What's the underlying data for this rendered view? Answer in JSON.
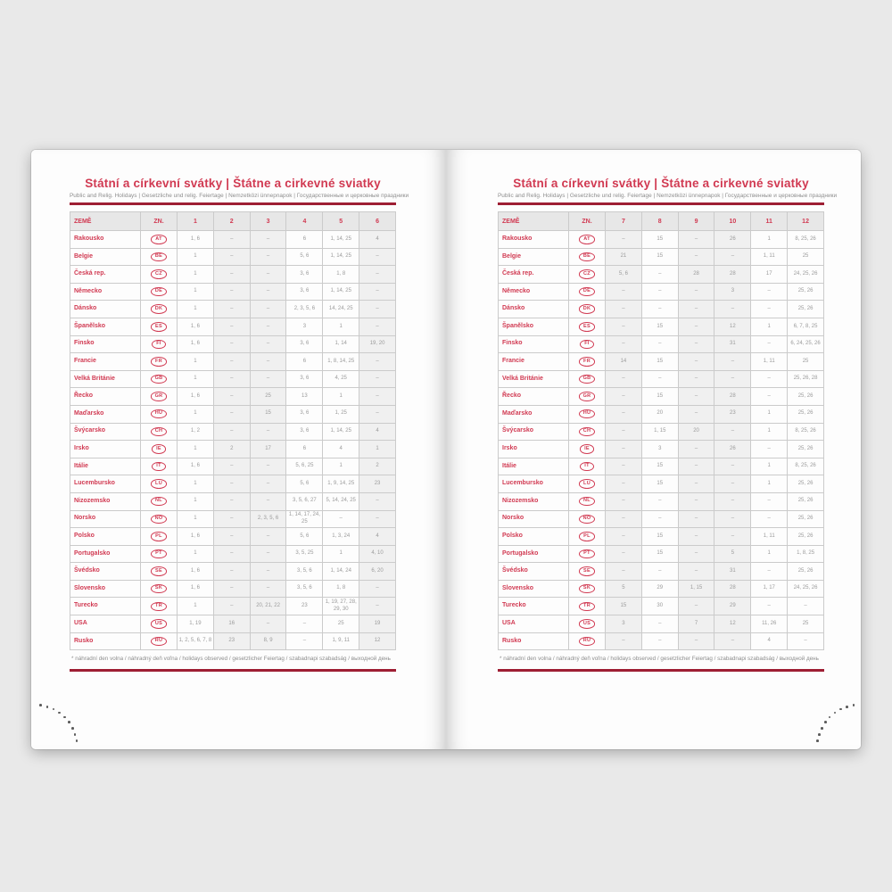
{
  "colors": {
    "accent": "#d13a52",
    "rule": "#9e1e33",
    "numbers": "#9b9b9b"
  },
  "header": {
    "title": "Státní a církevní svátky | Štátne a cirkevné sviatky",
    "subtitle": "Public and Relig. Holidays | Gesetzliche und relig. Feiertage | Nemzetközi ünnepnapok | Государственные и церковные праздники"
  },
  "footnote": "* náhradní den volna / náhradný deň voľna / holidays observed / gesetzlicher Feiertag / szabadnapi szabadság / выходной день",
  "pages": [
    {
      "columns": [
        "ZEMĚ",
        "ZN.",
        "1",
        "2",
        "3",
        "4",
        "5",
        "6"
      ],
      "rows": [
        {
          "country": "Rakousko",
          "code": "AT",
          "values": [
            "1, 6",
            "–",
            "–",
            "6",
            "1, 14, 25",
            "4"
          ]
        },
        {
          "country": "Belgie",
          "code": "BE",
          "values": [
            "1",
            "–",
            "–",
            "5, 6",
            "1, 14, 25",
            "–"
          ]
        },
        {
          "country": "Česká rep.",
          "code": "CZ",
          "values": [
            "1",
            "–",
            "–",
            "3, 6",
            "1, 8",
            "–"
          ]
        },
        {
          "country": "Německo",
          "code": "DE",
          "values": [
            "1",
            "–",
            "–",
            "3, 6",
            "1, 14, 25",
            "–"
          ]
        },
        {
          "country": "Dánsko",
          "code": "DK",
          "values": [
            "1",
            "–",
            "–",
            "2, 3, 5, 6",
            "14, 24, 25",
            "–"
          ]
        },
        {
          "country": "Španělsko",
          "code": "ES",
          "values": [
            "1, 6",
            "–",
            "–",
            "3",
            "1",
            "–"
          ]
        },
        {
          "country": "Finsko",
          "code": "FI",
          "values": [
            "1, 6",
            "–",
            "–",
            "3, 6",
            "1, 14",
            "19, 20"
          ]
        },
        {
          "country": "Francie",
          "code": "FR",
          "values": [
            "1",
            "–",
            "–",
            "6",
            "1, 8, 14, 25",
            "–"
          ]
        },
        {
          "country": "Velká Británie",
          "code": "GB",
          "values": [
            "1",
            "–",
            "–",
            "3, 6",
            "4, 25",
            "–"
          ]
        },
        {
          "country": "Řecko",
          "code": "GR",
          "values": [
            "1, 6",
            "–",
            "25",
            "13",
            "1",
            "–"
          ]
        },
        {
          "country": "Maďarsko",
          "code": "HU",
          "values": [
            "1",
            "–",
            "15",
            "3, 6",
            "1, 25",
            "–"
          ]
        },
        {
          "country": "Švýcarsko",
          "code": "CH",
          "values": [
            "1, 2",
            "–",
            "–",
            "3, 6",
            "1, 14, 25",
            "4"
          ]
        },
        {
          "country": "Irsko",
          "code": "IE",
          "values": [
            "1",
            "2",
            "17",
            "6",
            "4",
            "1"
          ]
        },
        {
          "country": "Itálie",
          "code": "IT",
          "values": [
            "1, 6",
            "–",
            "–",
            "5, 6, 25",
            "1",
            "2"
          ]
        },
        {
          "country": "Lucembursko",
          "code": "LU",
          "values": [
            "1",
            "–",
            "–",
            "5, 6",
            "1, 9, 14, 25",
            "23"
          ]
        },
        {
          "country": "Nizozemsko",
          "code": "NL",
          "values": [
            "1",
            "–",
            "–",
            "3, 5, 6, 27",
            "5, 14, 24, 25",
            "–"
          ]
        },
        {
          "country": "Norsko",
          "code": "NO",
          "values": [
            "1",
            "–",
            "2, 3, 5, 6",
            "1, 14, 17, 24, 25",
            "–",
            "–"
          ]
        },
        {
          "country": "Polsko",
          "code": "PL",
          "values": [
            "1, 6",
            "–",
            "–",
            "5, 6",
            "1, 3, 24",
            "4"
          ]
        },
        {
          "country": "Portugalsko",
          "code": "PT",
          "values": [
            "1",
            "–",
            "–",
            "3, 5, 25",
            "1",
            "4, 10"
          ]
        },
        {
          "country": "Švédsko",
          "code": "SE",
          "values": [
            "1, 6",
            "–",
            "–",
            "3, 5, 6",
            "1, 14, 24",
            "6, 20"
          ]
        },
        {
          "country": "Slovensko",
          "code": "SK",
          "values": [
            "1, 6",
            "–",
            "–",
            "3, 5, 6",
            "1, 8",
            "–"
          ]
        },
        {
          "country": "Turecko",
          "code": "TR",
          "values": [
            "1",
            "–",
            "20, 21, 22",
            "23",
            "1, 19, 27, 28, 29, 30",
            "–"
          ]
        },
        {
          "country": "USA",
          "code": "US",
          "values": [
            "1, 19",
            "16",
            "–",
            "–",
            "25",
            "19"
          ]
        },
        {
          "country": "Rusko",
          "code": "RU",
          "values": [
            "1, 2, 5, 6, 7, 8",
            "23",
            "8, 9",
            "–",
            "1, 9, 11",
            "12"
          ]
        }
      ]
    },
    {
      "columns": [
        "ZEMĚ",
        "ZN.",
        "7",
        "8",
        "9",
        "10",
        "11",
        "12"
      ],
      "rows": [
        {
          "country": "Rakousko",
          "code": "AT",
          "values": [
            "–",
            "15",
            "–",
            "26",
            "1",
            "8, 25, 26"
          ]
        },
        {
          "country": "Belgie",
          "code": "BE",
          "values": [
            "21",
            "15",
            "–",
            "–",
            "1, 11",
            "25"
          ]
        },
        {
          "country": "Česká rep.",
          "code": "CZ",
          "values": [
            "5, 6",
            "–",
            "28",
            "28",
            "17",
            "24, 25, 26"
          ]
        },
        {
          "country": "Německo",
          "code": "DE",
          "values": [
            "–",
            "–",
            "–",
            "3",
            "–",
            "25, 26"
          ]
        },
        {
          "country": "Dánsko",
          "code": "DK",
          "values": [
            "–",
            "–",
            "–",
            "–",
            "–",
            "25, 26"
          ]
        },
        {
          "country": "Španělsko",
          "code": "ES",
          "values": [
            "–",
            "15",
            "–",
            "12",
            "1",
            "6, 7, 8, 25"
          ]
        },
        {
          "country": "Finsko",
          "code": "FI",
          "values": [
            "–",
            "–",
            "–",
            "31",
            "–",
            "6, 24, 25, 26"
          ]
        },
        {
          "country": "Francie",
          "code": "FR",
          "values": [
            "14",
            "15",
            "–",
            "–",
            "1, 11",
            "25"
          ]
        },
        {
          "country": "Velká Británie",
          "code": "GB",
          "values": [
            "–",
            "–",
            "–",
            "–",
            "–",
            "25, 26, 28"
          ]
        },
        {
          "country": "Řecko",
          "code": "GR",
          "values": [
            "–",
            "15",
            "–",
            "28",
            "–",
            "25, 26"
          ]
        },
        {
          "country": "Maďarsko",
          "code": "HU",
          "values": [
            "–",
            "20",
            "–",
            "23",
            "1",
            "25, 26"
          ]
        },
        {
          "country": "Švýcarsko",
          "code": "CH",
          "values": [
            "–",
            "1, 15",
            "20",
            "–",
            "1",
            "8, 25, 26"
          ]
        },
        {
          "country": "Irsko",
          "code": "IE",
          "values": [
            "–",
            "3",
            "–",
            "26",
            "–",
            "25, 26"
          ]
        },
        {
          "country": "Itálie",
          "code": "IT",
          "values": [
            "–",
            "15",
            "–",
            "–",
            "1",
            "8, 25, 26"
          ]
        },
        {
          "country": "Lucembursko",
          "code": "LU",
          "values": [
            "–",
            "15",
            "–",
            "–",
            "1",
            "25, 26"
          ]
        },
        {
          "country": "Nizozemsko",
          "code": "NL",
          "values": [
            "–",
            "–",
            "–",
            "–",
            "–",
            "25, 26"
          ]
        },
        {
          "country": "Norsko",
          "code": "NO",
          "values": [
            "–",
            "–",
            "–",
            "–",
            "–",
            "25, 26"
          ]
        },
        {
          "country": "Polsko",
          "code": "PL",
          "values": [
            "–",
            "15",
            "–",
            "–",
            "1, 11",
            "25, 26"
          ]
        },
        {
          "country": "Portugalsko",
          "code": "PT",
          "values": [
            "–",
            "15",
            "–",
            "5",
            "1",
            "1, 8, 25"
          ]
        },
        {
          "country": "Švédsko",
          "code": "SE",
          "values": [
            "–",
            "–",
            "–",
            "31",
            "–",
            "25, 26"
          ]
        },
        {
          "country": "Slovensko",
          "code": "SK",
          "values": [
            "5",
            "29",
            "1, 15",
            "28",
            "1, 17",
            "24, 25, 26"
          ]
        },
        {
          "country": "Turecko",
          "code": "TR",
          "values": [
            "15",
            "30",
            "–",
            "29",
            "–",
            "–"
          ]
        },
        {
          "country": "USA",
          "code": "US",
          "values": [
            "3",
            "–",
            "7",
            "12",
            "11, 26",
            "25"
          ]
        },
        {
          "country": "Rusko",
          "code": "RU",
          "values": [
            "–",
            "–",
            "–",
            "–",
            "4",
            "–"
          ]
        }
      ]
    }
  ]
}
